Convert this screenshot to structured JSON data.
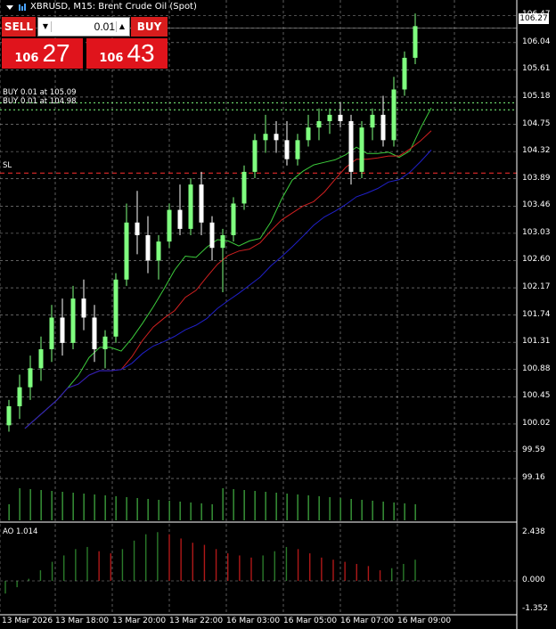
{
  "title": {
    "text": "XBRUSD, M15:  Brent Crude Oil (Spot)"
  },
  "trade_panel": {
    "sell_label": "SELL",
    "buy_label": "BUY",
    "lot_value": "0.01",
    "sell_price_small": "106",
    "sell_price_big": "27",
    "buy_price_small": "106",
    "buy_price_big": "43"
  },
  "order_labels": {
    "buy1": "BUY 0.01 at 105.09",
    "buy2": "BUY 0.01 at 104.98",
    "sl": "SL"
  },
  "indicator": {
    "label": "AO 1.014"
  },
  "current_price": "106.27",
  "colors": {
    "sell_bg": "#d81d1d",
    "buy_bg": "#d81d1d",
    "bull_candle": "#7fff7f",
    "bear_candle": "#ffffff",
    "ma_fast": "#3ccc3c",
    "ma_mid": "#d02020",
    "ma_slow": "#2020c8",
    "order_line": "#80ff80",
    "sl_line": "#ff3030",
    "ao_up": "#2a7a2a",
    "ao_down": "#b01818"
  },
  "chart_data": {
    "type": "candlestick",
    "y_axis_labels": [
      "106.47",
      "106.27",
      "106.04",
      "105.61",
      "105.18",
      "104.75",
      "104.32",
      "103.89",
      "103.46",
      "103.03",
      "102.60",
      "102.17",
      "101.74",
      "101.31",
      "100.88",
      "100.45",
      "100.02",
      "99.59",
      "99.16"
    ],
    "ylim": [
      98.95,
      106.6
    ],
    "x_axis_labels": [
      "13 Mar 2026",
      "13 Mar 18:00",
      "13 Mar 20:00",
      "13 Mar 22:00",
      "16 Mar 03:00",
      "16 Mar 05:00",
      "16 Mar 07:00",
      "16 Mar 09:00"
    ],
    "order_levels": [
      105.09,
      104.98
    ],
    "sl_level": 103.98,
    "ohlc": [
      [
        100.0,
        100.4,
        99.9,
        100.3
      ],
      [
        100.3,
        100.8,
        100.1,
        100.6
      ],
      [
        100.6,
        101.1,
        100.4,
        100.9
      ],
      [
        100.9,
        101.4,
        100.7,
        101.2
      ],
      [
        101.2,
        101.9,
        101.0,
        101.7
      ],
      [
        101.7,
        102.0,
        101.1,
        101.3
      ],
      [
        101.3,
        102.2,
        101.2,
        102.0
      ],
      [
        102.0,
        102.3,
        101.5,
        101.7
      ],
      [
        101.7,
        101.9,
        101.0,
        101.2
      ],
      [
        101.2,
        101.5,
        100.9,
        101.4
      ],
      [
        101.4,
        102.4,
        101.3,
        102.3
      ],
      [
        102.3,
        103.5,
        102.2,
        103.2
      ],
      [
        103.2,
        103.7,
        102.7,
        103.0
      ],
      [
        103.0,
        103.3,
        102.4,
        102.6
      ],
      [
        102.6,
        103.0,
        102.3,
        102.9
      ],
      [
        102.9,
        103.5,
        102.8,
        103.4
      ],
      [
        103.4,
        103.8,
        103.0,
        103.1
      ],
      [
        103.1,
        103.9,
        103.0,
        103.8
      ],
      [
        103.8,
        104.0,
        103.0,
        103.2
      ],
      [
        103.2,
        103.3,
        102.6,
        102.8
      ],
      [
        102.8,
        103.1,
        102.1,
        103.0
      ],
      [
        103.0,
        103.6,
        102.9,
        103.5
      ],
      [
        103.5,
        104.1,
        103.4,
        104.0
      ],
      [
        104.0,
        104.6,
        103.9,
        104.5
      ],
      [
        104.5,
        104.9,
        104.3,
        104.6
      ],
      [
        104.6,
        104.8,
        104.3,
        104.5
      ],
      [
        104.5,
        104.8,
        104.1,
        104.2
      ],
      [
        104.2,
        104.6,
        104.1,
        104.5
      ],
      [
        104.5,
        104.9,
        104.4,
        104.7
      ],
      [
        104.7,
        105.0,
        104.5,
        104.8
      ],
      [
        104.8,
        105.0,
        104.6,
        104.9
      ],
      [
        104.9,
        105.1,
        104.7,
        104.8
      ],
      [
        104.8,
        104.9,
        103.8,
        104.0
      ],
      [
        104.0,
        104.8,
        103.9,
        104.7
      ],
      [
        104.7,
        105.0,
        104.5,
        104.9
      ],
      [
        104.9,
        105.2,
        104.4,
        104.5
      ],
      [
        104.5,
        105.5,
        104.4,
        105.3
      ],
      [
        105.3,
        105.9,
        105.2,
        105.8
      ],
      [
        105.8,
        106.5,
        105.7,
        106.3
      ]
    ],
    "ao_axis_labels": [
      "2.438",
      "0.000",
      "-1.352"
    ],
    "ao_values": [
      -0.6,
      -0.3,
      0.1,
      0.5,
      0.9,
      1.2,
      1.5,
      1.6,
      1.4,
      1.3,
      1.5,
      1.9,
      2.2,
      2.3,
      2.2,
      2.0,
      1.8,
      1.7,
      1.5,
      1.3,
      1.2,
      1.1,
      1.2,
      1.4,
      1.6,
      1.5,
      1.3,
      1.1,
      1.0,
      0.9,
      0.8,
      0.7,
      0.5,
      0.6,
      0.8,
      1.0
    ]
  }
}
